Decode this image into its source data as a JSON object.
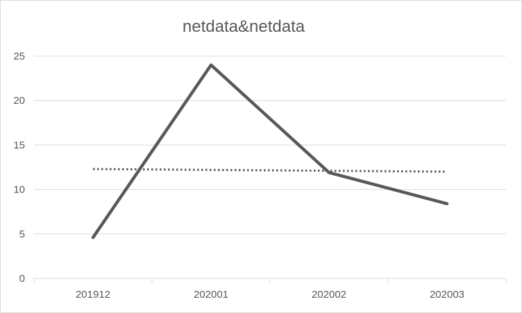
{
  "chart_data": {
    "type": "line",
    "title": "netdata&netdata",
    "xlabel": "",
    "ylabel": "",
    "categories": [
      "201912",
      "202001",
      "202002",
      "202003"
    ],
    "series": [
      {
        "values": [
          4.6,
          24.0,
          11.9,
          8.4
        ],
        "color": "#595959",
        "style": "solid"
      },
      {
        "values": [
          12.3,
          12.2,
          12.1,
          12.0
        ],
        "color": "#595959",
        "style": "dotted"
      }
    ],
    "ylim": [
      0,
      25
    ],
    "yticks": [
      "0",
      "5",
      "10",
      "15",
      "20",
      "25"
    ],
    "grid": true,
    "legend": "none"
  }
}
